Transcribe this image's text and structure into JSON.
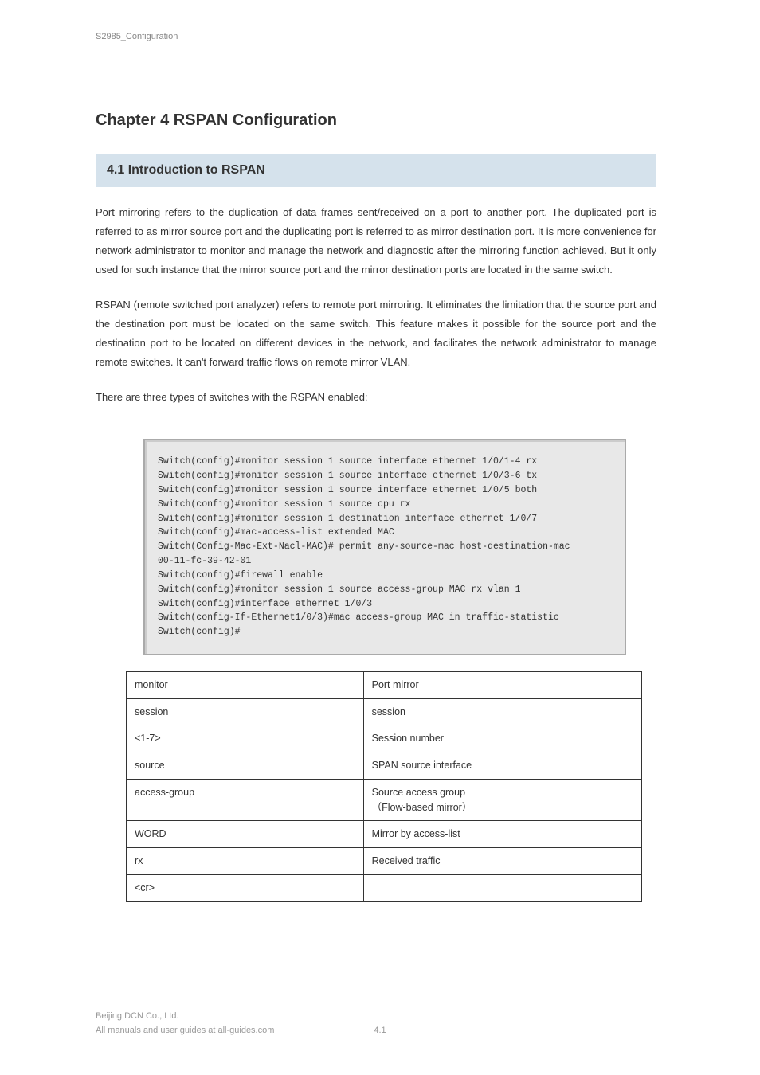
{
  "page_header": "S2985_Configuration",
  "section_number": "Chapter 4 RSPAN Configuration",
  "section_heading": "4.1 Introduction to RSPAN",
  "body_paragraphs": [
    "Port mirroring refers to the duplication of data frames sent/received on a port to another port. The duplicated port is referred to as mirror source port and the duplicating port is referred to as mirror destination port. It is more convenience for network administrator to monitor and manage the network and diagnostic after the mirroring function achieved. But it only used for such instance that the mirror source port and the mirror destination ports are located in the same switch.",
    "RSPAN (remote switched port analyzer) refers to remote port mirroring. It eliminates the limitation that the source port and the destination port must be located on the same switch. This feature makes it possible for the source port and the destination port to be located on different devices in the network, and facilitates the network administrator to manage remote switches. It can't forward traffic flows on remote mirror VLAN.",
    "There are three types of switches with the RSPAN enabled:"
  ],
  "cli_commands": [
    "Switch(config)#monitor session 1 source interface ethernet 1/0/1-4 rx",
    "Switch(config)#monitor session 1 source interface ethernet 1/0/3-6 tx",
    "Switch(config)#monitor session 1 source interface ethernet 1/0/5 both",
    "Switch(config)#monitor session 1 source cpu rx",
    "Switch(config)#monitor session 1 destination interface ethernet 1/0/7",
    "Switch(config)#mac-access-list extended MAC",
    "Switch(Config-Mac-Ext-Nacl-MAC)# permit any-source-mac host-destination-mac",
    "00-11-fc-39-42-01",
    "Switch(config)#firewall enable",
    "Switch(config)#monitor session 1 source access-group MAC rx vlan 1",
    "Switch(config)#interface ethernet 1/0/3",
    "Switch(config-If-Ethernet1/0/3)#mac access-group MAC in traffic-statistic",
    "Switch(config)#"
  ],
  "table_rows": [
    {
      "param": "monitor",
      "desc": "Port mirror"
    },
    {
      "param": "session",
      "desc": "session"
    },
    {
      "param": "<1-7>",
      "desc": "Session number"
    },
    {
      "param": "source",
      "desc": "SPAN source interface"
    },
    {
      "param": "access-group",
      "desc": "Source access group\n（Flow-based mirror）"
    },
    {
      "param": "WORD",
      "desc": "Mirror by access-list"
    },
    {
      "param": "rx",
      "desc": "Received traffic"
    },
    {
      "param": "<cr>",
      "desc": ""
    }
  ],
  "footer_line1": "Beijing DCN Co., Ltd.",
  "footer_line2": "All manuals and user guides at all-guides.com",
  "page_number": "4.1"
}
